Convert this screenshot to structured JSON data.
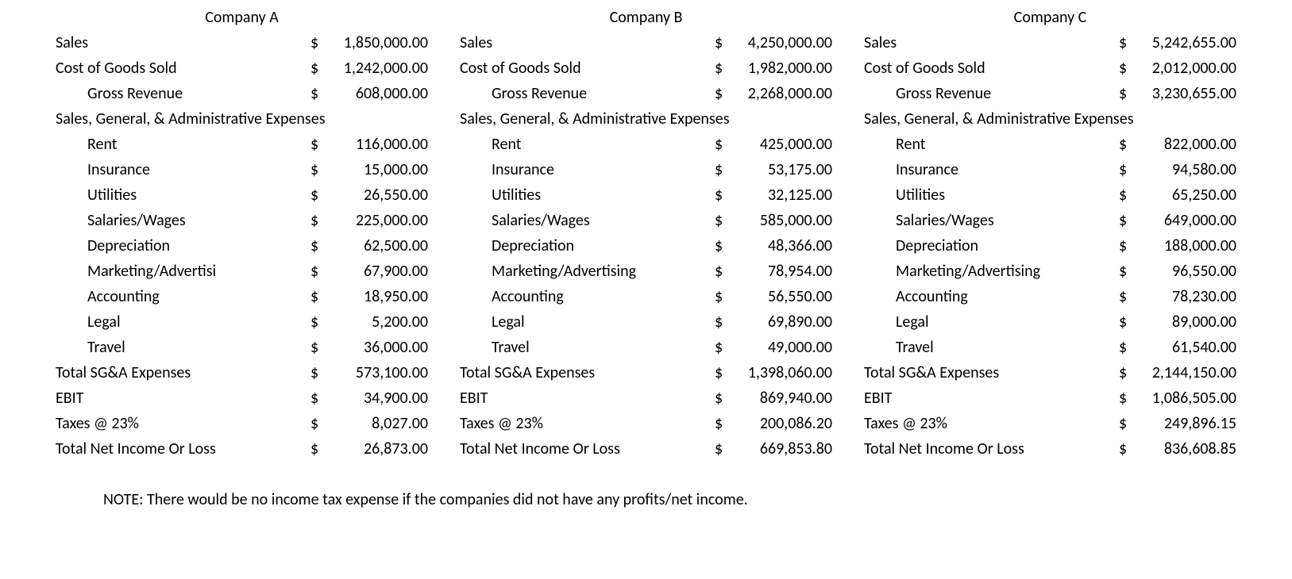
{
  "labels": {
    "sales": "Sales",
    "cogs": "Cost of Goods Sold",
    "gross_revenue": "Gross Revenue",
    "sga_header": "Sales, General, & Administrative Expenses",
    "rent": "Rent",
    "insurance": "Insurance",
    "utilities": "Utilities",
    "salaries": "Salaries/Wages",
    "depreciation": "Depreciation",
    "marketing": "Marketing/Advertising",
    "marketing_trunc": "Marketing/Advertisi",
    "accounting": "Accounting",
    "legal": "Legal",
    "travel": "Travel",
    "total_sga": "Total SG&A Expenses",
    "ebit": "EBIT",
    "taxes": "Taxes @ 23%",
    "net_income": "Total Net Income Or Loss"
  },
  "currency": "$",
  "companies": {
    "a": {
      "name": "Company A",
      "sales": "1,850,000.00",
      "cogs": "1,242,000.00",
      "gross_revenue": "608,000.00",
      "rent": "116,000.00",
      "insurance": "15,000.00",
      "utilities": "26,550.00",
      "salaries": "225,000.00",
      "depreciation": "62,500.00",
      "marketing": "67,900.00",
      "accounting": "18,950.00",
      "legal": "5,200.00",
      "travel": "36,000.00",
      "total_sga": "573,100.00",
      "ebit": "34,900.00",
      "taxes": "8,027.00",
      "net_income": "26,873.00",
      "sales_prefix": "$ ",
      "cogs_prefix": "$ ",
      "gross_revenue_prefix": "$",
      "total_sga_prefix": "$",
      "ebit_prefix": "$",
      "taxes_prefix": "$",
      "net_income_prefix": "$"
    },
    "b": {
      "name": "Company B",
      "sales": "4,250,000.00",
      "cogs": "1,982,000.00",
      "gross_revenue": "2,268,000.00",
      "rent": "425,000.00",
      "insurance": "53,175.00",
      "utilities": "32,125.00",
      "salaries": "585,000.00",
      "depreciation": "48,366.00",
      "marketing": "78,954.00",
      "accounting": "56,550.00",
      "legal": "69,890.00",
      "travel": "49,000.00",
      "total_sga": "1,398,060.00",
      "ebit": "869,940.00",
      "taxes": "200,086.20",
      "net_income": "669,853.80",
      "sales_prefix": "$ ",
      "cogs_prefix": "$ ",
      "gross_revenue_prefix": "$ ",
      "total_sga_prefix": "$ ",
      "ebit_prefix": "$",
      "taxes_prefix": "$",
      "net_income_prefix": "$"
    },
    "c": {
      "name": "Company C",
      "sales": "5,242,655.00",
      "cogs": "2,012,000.00",
      "gross_revenue": "3,230,655.00",
      "rent": "822,000.00",
      "insurance": "94,580.00",
      "utilities": "65,250.00",
      "salaries": "649,000.00",
      "depreciation": "188,000.00",
      "marketing": "96,550.00",
      "accounting": "78,230.00",
      "legal": "89,000.00",
      "travel": "61,540.00",
      "total_sga": "2,144,150.00",
      "ebit": "1,086,505.00",
      "taxes": "249,896.15",
      "net_income": "836,608.85",
      "sales_prefix": "$ ",
      "cogs_prefix": "$ ",
      "gross_revenue_prefix": "$ ",
      "total_sga_prefix": "$ ",
      "ebit_prefix": "$ ",
      "taxes_prefix": "$",
      "net_income_prefix": "$"
    }
  },
  "note": "NOTE: There would be no income tax expense if the companies did not have any profits/net income."
}
